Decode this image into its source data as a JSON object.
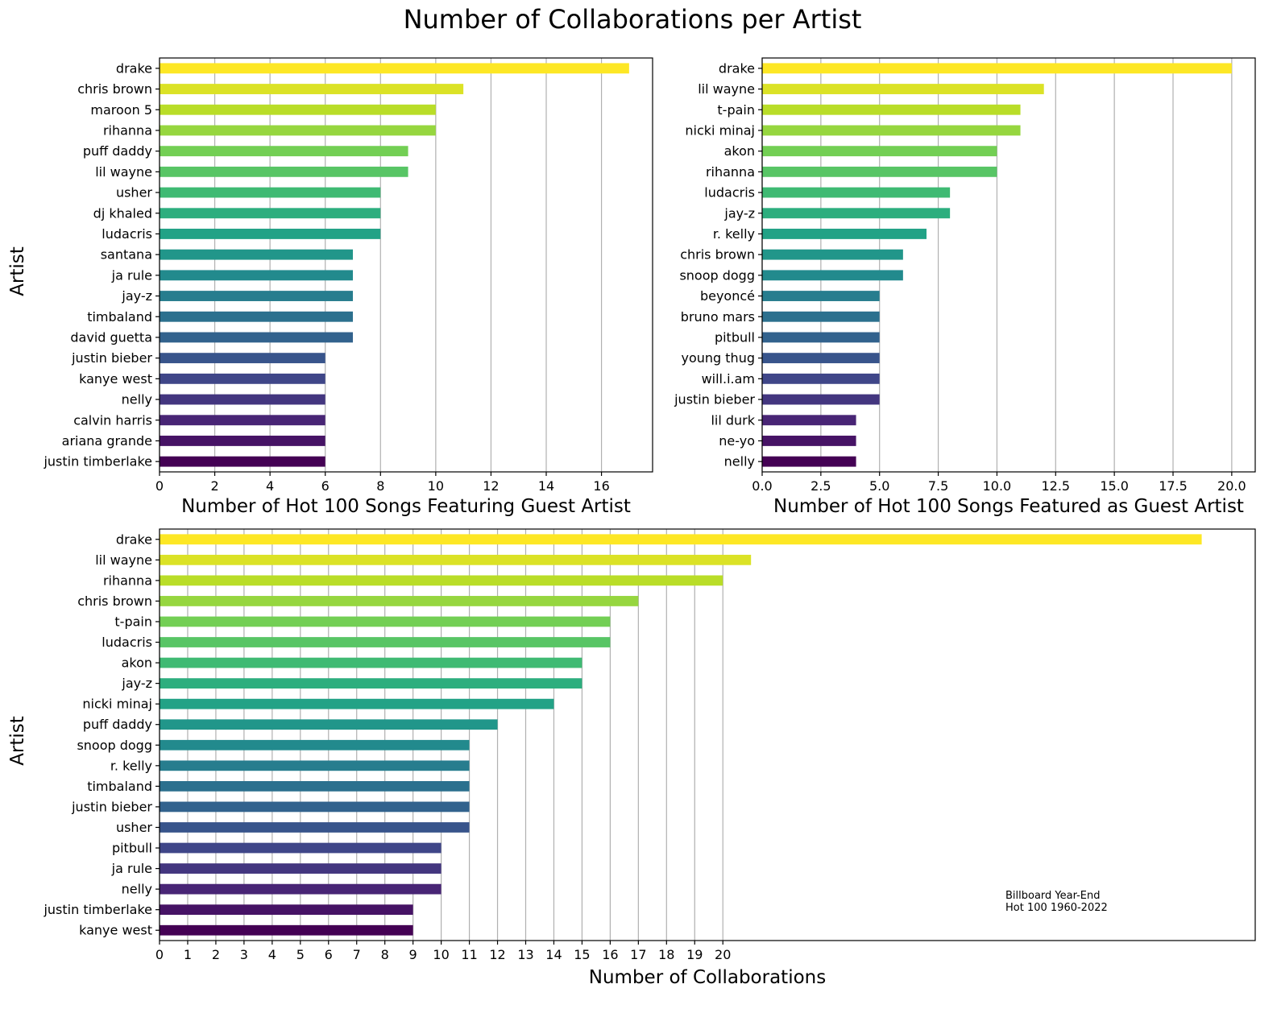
{
  "figure": {
    "title": "Number of Collaborations per Artist",
    "annotation": [
      "Billboard Year-End",
      "Hot 100 1960-2022"
    ]
  },
  "chart_data": [
    {
      "type": "bar",
      "orientation": "horizontal",
      "xlabel": "Number of Hot 100 Songs Featuring Guest Artist",
      "ylabel": "Artist",
      "categories": [
        "drake",
        "chris brown",
        "maroon 5",
        "rihanna",
        "puff daddy",
        "lil wayne",
        "usher",
        "dj khaled",
        "ludacris",
        "santana",
        "ja rule",
        "jay-z",
        "timbaland",
        "david guetta",
        "justin bieber",
        "kanye west",
        "nelly",
        "calvin harris",
        "ariana grande",
        "justin timberlake"
      ],
      "values": [
        17,
        11,
        10,
        10,
        9,
        9,
        8,
        8,
        8,
        7,
        7,
        7,
        7,
        7,
        6,
        6,
        6,
        6,
        6,
        6
      ],
      "xlim": [
        0,
        17.85
      ],
      "xticks": [
        "0",
        "2",
        "4",
        "6",
        "8",
        "10",
        "12",
        "14",
        "16"
      ],
      "xtick_values": [
        0,
        2,
        4,
        6,
        8,
        10,
        12,
        14,
        16
      ],
      "grid": "vertical",
      "colormap": "viridis"
    },
    {
      "type": "bar",
      "orientation": "horizontal",
      "xlabel": "Number of Hot 100 Songs Featured as Guest Artist",
      "ylabel": "",
      "categories": [
        "drake",
        "lil wayne",
        "t-pain",
        "nicki minaj",
        "akon",
        "rihanna",
        "ludacris",
        "jay-z",
        "r. kelly",
        "chris brown",
        "snoop dogg",
        "beyoncé",
        "bruno mars",
        "pitbull",
        "young thug",
        "will.i.am",
        "justin bieber",
        "lil durk",
        "ne-yo",
        "nelly"
      ],
      "values": [
        20,
        12,
        11,
        11,
        10,
        10,
        8,
        8,
        7,
        6,
        6,
        5,
        5,
        5,
        5,
        5,
        5,
        4,
        4,
        4
      ],
      "xlim": [
        0,
        21
      ],
      "xticks": [
        "0.0",
        "2.5",
        "5.0",
        "7.5",
        "10.0",
        "12.5",
        "15.0",
        "17.5",
        "20.0"
      ],
      "xtick_values": [
        0,
        2.5,
        5,
        7.5,
        10,
        12.5,
        15,
        17.5,
        20
      ],
      "grid": "vertical",
      "colormap": "viridis"
    },
    {
      "type": "bar",
      "orientation": "horizontal",
      "xlabel": "Number of Collaborations",
      "ylabel": "Artist",
      "categories": [
        "drake",
        "lil wayne",
        "rihanna",
        "chris brown",
        "t-pain",
        "ludacris",
        "akon",
        "jay-z",
        "nicki minaj",
        "puff daddy",
        "snoop dogg",
        "r. kelly",
        "timbaland",
        "justin bieber",
        "usher",
        "pitbull",
        "ja rule",
        "nelly",
        "justin timberlake",
        "kanye west"
      ],
      "values": [
        37,
        21,
        20,
        17,
        16,
        16,
        15,
        15,
        14,
        12,
        11,
        11,
        11,
        11,
        11,
        10,
        10,
        10,
        9,
        9
      ],
      "xlim": [
        0,
        38.9
      ],
      "xticks": [
        "0",
        "1",
        "2",
        "3",
        "4",
        "5",
        "6",
        "7",
        "8",
        "9",
        "10",
        "11",
        "12",
        "13",
        "14",
        "15",
        "16",
        "17",
        "18",
        "19",
        "20"
      ],
      "xtick_values": [
        0,
        1,
        2,
        3,
        4,
        5,
        6,
        7,
        8,
        9,
        10,
        11,
        12,
        13,
        14,
        15,
        16,
        17,
        18,
        19,
        20
      ],
      "grid": "vertical",
      "colormap": "viridis"
    }
  ]
}
